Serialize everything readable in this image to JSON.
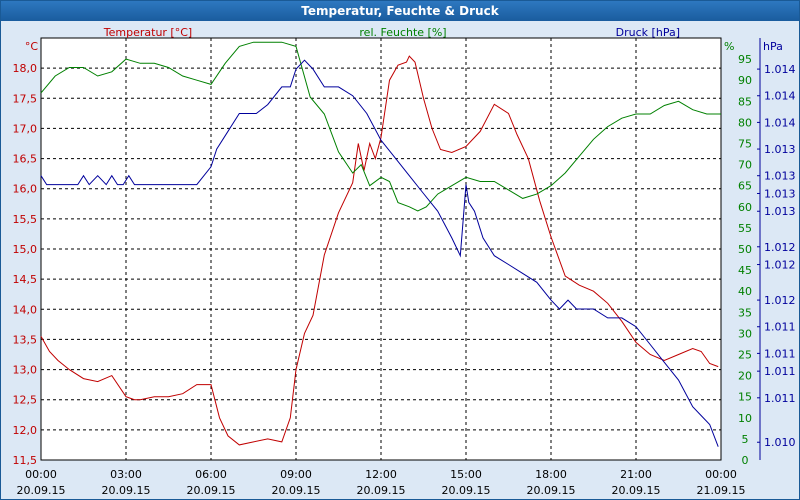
{
  "window": {
    "title": "Temperatur, Feuchte & Druck"
  },
  "colors": {
    "temperature": "#c00000",
    "humidity": "#008000",
    "pressure": "#00009c",
    "grid": "#000000",
    "plot_background": "#ffffff",
    "window_background": "#dce8f5",
    "title_bar": "#1f65aa"
  },
  "chart_data": {
    "type": "line",
    "title": "Temperatur, Feuchte & Druck",
    "grid": true,
    "legend_placement": "top",
    "x_ticks": [
      {
        "time": "00:00",
        "date": "20.09.15"
      },
      {
        "time": "03:00",
        "date": "20.09.15"
      },
      {
        "time": "06:00",
        "date": "20.09.15"
      },
      {
        "time": "09:00",
        "date": "20.09.15"
      },
      {
        "time": "12:00",
        "date": "20.09.15"
      },
      {
        "time": "15:00",
        "date": "20.09.15"
      },
      {
        "time": "18:00",
        "date": "20.09.15"
      },
      {
        "time": "21:00",
        "date": "20.09.15"
      },
      {
        "time": "00:00",
        "date": "21.09.15"
      }
    ],
    "x_range_hours": [
      0,
      24
    ],
    "axes": {
      "left": {
        "label": "Temperatur [°C]",
        "unit": "°C",
        "range": [
          11.5,
          18.5
        ],
        "ticks": [
          "11,5",
          "12,0",
          "12,5",
          "13,0",
          "13,5",
          "14,0",
          "14,5",
          "15,0",
          "15,5",
          "16,0",
          "16,5",
          "17,0",
          "17,5",
          "18,0"
        ],
        "tick_values": [
          11.5,
          12.0,
          12.5,
          13.0,
          13.5,
          14.0,
          14.5,
          15.0,
          15.5,
          16.0,
          16.5,
          17.0,
          17.5,
          18.0
        ]
      },
      "right1": {
        "label": "rel. Feuchte [%]",
        "unit": "%",
        "range": [
          0,
          100
        ],
        "ticks": [
          "0",
          "5",
          "10",
          "15",
          "20",
          "25",
          "30",
          "35",
          "40",
          "45",
          "50",
          "55",
          "60",
          "65",
          "70",
          "75",
          "80",
          "85",
          "90",
          "95"
        ],
        "tick_values": [
          0,
          5,
          10,
          15,
          20,
          25,
          30,
          35,
          40,
          45,
          50,
          55,
          60,
          65,
          70,
          75,
          80,
          85,
          90,
          95
        ]
      },
      "right2": {
        "label": "Druck [hPa]",
        "unit": "hPa",
        "range": [
          1009.8,
          1014.55
        ],
        "ticks": [
          "1.010",
          "1.011",
          "1.011",
          "1.011",
          "1.011",
          "1.012",
          "1.012",
          "1.012",
          "1.013",
          "1.013",
          "1.013",
          "1.013",
          "1.014",
          "1.014",
          "1.014"
        ],
        "tick_values": [
          1010.0,
          1010.5,
          1010.8,
          1011.0,
          1011.3,
          1011.6,
          1012.0,
          1012.2,
          1012.6,
          1012.8,
          1013.0,
          1013.3,
          1013.6,
          1013.9,
          1014.2
        ]
      }
    },
    "series": [
      {
        "name": "Temperatur [°C]",
        "axis": "left",
        "color_key": "temperature",
        "x": [
          0,
          0.3,
          0.6,
          1.0,
          1.5,
          2.0,
          2.5,
          3.0,
          3.3,
          3.5,
          4.0,
          4.5,
          5.0,
          5.5,
          6.0,
          6.3,
          6.6,
          7.0,
          7.5,
          8.0,
          8.5,
          8.8,
          9.0,
          9.3,
          9.6,
          10.0,
          10.5,
          11.0,
          11.2,
          11.4,
          11.6,
          11.8,
          12.0,
          12.3,
          12.6,
          12.9,
          13.0,
          13.2,
          13.5,
          13.8,
          14.1,
          14.5,
          15.0,
          15.5,
          16.0,
          16.5,
          16.8,
          17.2,
          17.6,
          18.0,
          18.5,
          19.0,
          19.5,
          20.0,
          20.5,
          21.0,
          21.5,
          22.0,
          22.5,
          23.0,
          23.3,
          23.6,
          23.9
        ],
        "values": [
          13.55,
          13.3,
          13.15,
          13.0,
          12.85,
          12.8,
          12.9,
          12.55,
          12.5,
          12.5,
          12.55,
          12.55,
          12.6,
          12.75,
          12.75,
          12.2,
          11.9,
          11.75,
          11.8,
          11.85,
          11.8,
          12.2,
          13.0,
          13.6,
          13.9,
          14.9,
          15.6,
          16.1,
          16.75,
          16.3,
          16.75,
          16.5,
          16.85,
          17.8,
          18.05,
          18.1,
          18.2,
          18.1,
          17.5,
          17.0,
          16.65,
          16.6,
          16.7,
          16.95,
          17.4,
          17.25,
          16.9,
          16.5,
          15.8,
          15.2,
          14.55,
          14.4,
          14.3,
          14.1,
          13.8,
          13.45,
          13.25,
          13.15,
          13.25,
          13.35,
          13.3,
          13.1,
          13.05
        ]
      },
      {
        "name": "rel. Feuchte [%]",
        "axis": "right1",
        "color_key": "humidity",
        "x": [
          0,
          0.5,
          1.0,
          1.5,
          2.0,
          2.5,
          3.0,
          3.5,
          4.0,
          4.5,
          5.0,
          5.5,
          6.0,
          6.5,
          7.0,
          7.5,
          8.0,
          8.5,
          9.0,
          9.5,
          10.0,
          10.5,
          11.0,
          11.3,
          11.6,
          12.0,
          12.3,
          12.6,
          13.0,
          13.3,
          13.6,
          14.0,
          14.5,
          15.0,
          15.5,
          16.0,
          16.5,
          17.0,
          17.5,
          18.0,
          18.5,
          19.0,
          19.5,
          20.0,
          20.5,
          21.0,
          21.5,
          22.0,
          22.5,
          23.0,
          23.5,
          24.0
        ],
        "values": [
          87,
          91,
          93,
          93,
          91,
          92,
          95,
          94,
          94,
          93,
          91,
          90,
          89,
          94,
          98,
          99,
          99,
          99,
          98,
          86,
          82,
          73,
          68,
          70,
          65,
          67,
          66,
          61,
          60,
          59,
          60,
          63,
          65,
          67,
          66,
          66,
          64,
          62,
          63,
          65,
          68,
          72,
          76,
          79,
          81,
          82,
          82,
          84,
          85,
          83,
          82,
          82
        ]
      },
      {
        "name": "Druck [hPa]",
        "axis": "right2",
        "color_key": "pressure",
        "x": [
          0,
          0.2,
          0.5,
          0.8,
          1.0,
          1.3,
          1.5,
          1.7,
          2.0,
          2.3,
          2.5,
          2.7,
          2.9,
          3.1,
          3.3,
          3.6,
          4.0,
          4.5,
          5.0,
          5.5,
          6.0,
          6.2,
          6.6,
          7.0,
          7.3,
          7.6,
          8.0,
          8.5,
          8.8,
          9.0,
          9.3,
          9.6,
          10.0,
          10.5,
          11.0,
          11.5,
          12.0,
          12.5,
          13.0,
          13.5,
          14.0,
          14.5,
          14.8,
          15.0,
          15.1,
          15.3,
          15.6,
          16.0,
          16.5,
          17.0,
          17.5,
          18.0,
          18.3,
          18.6,
          18.9,
          19.2,
          19.5,
          20.0,
          20.5,
          21.0,
          21.5,
          22.0,
          22.5,
          23.0,
          23.3,
          23.6,
          23.9
        ],
        "values": [
          1013.0,
          1012.9,
          1012.9,
          1012.9,
          1012.9,
          1012.9,
          1013.0,
          1012.9,
          1013.0,
          1012.9,
          1013.0,
          1012.9,
          1012.9,
          1013.0,
          1012.9,
          1012.9,
          1012.9,
          1012.9,
          1012.9,
          1012.9,
          1013.1,
          1013.3,
          1013.5,
          1013.7,
          1013.7,
          1013.7,
          1013.8,
          1014.0,
          1014.0,
          1014.2,
          1014.3,
          1014.2,
          1014.0,
          1014.0,
          1013.9,
          1013.7,
          1013.4,
          1013.2,
          1013.0,
          1012.8,
          1012.6,
          1012.3,
          1012.1,
          1012.9,
          1012.7,
          1012.6,
          1012.3,
          1012.1,
          1012.0,
          1011.9,
          1011.8,
          1011.6,
          1011.5,
          1011.6,
          1011.5,
          1011.5,
          1011.5,
          1011.4,
          1011.4,
          1011.3,
          1011.1,
          1010.9,
          1010.7,
          1010.4,
          1010.3,
          1010.2,
          1009.95
        ]
      }
    ]
  }
}
